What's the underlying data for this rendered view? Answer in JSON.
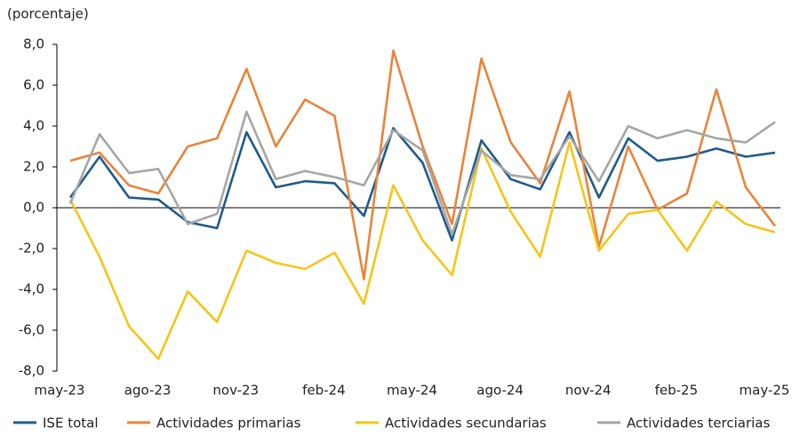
{
  "chart_data": {
    "type": "line",
    "subtitle": "(porcentaje)",
    "categories": [
      "may-23",
      null,
      null,
      "ago-23",
      null,
      null,
      "nov-23",
      null,
      null,
      "feb-24",
      null,
      null,
      "may-24",
      null,
      null,
      "ago-24",
      null,
      null,
      "nov-24",
      null,
      null,
      "feb-25",
      null,
      null,
      "may-25"
    ],
    "series": [
      {
        "name": "ISE total",
        "color": "#1f5b8a",
        "values": [
          0.5,
          2.5,
          0.5,
          0.4,
          -0.7,
          -1.0,
          3.7,
          1.0,
          1.3,
          1.2,
          -0.4,
          3.9,
          2.2,
          -1.6,
          3.3,
          1.4,
          0.9,
          3.7,
          0.5,
          3.4,
          2.3,
          2.5,
          2.9,
          2.5,
          2.7
        ]
      },
      {
        "name": "Actividades primarias",
        "color": "#e8843a",
        "values": [
          2.3,
          2.7,
          1.1,
          0.7,
          3.0,
          3.4,
          6.8,
          3.0,
          5.3,
          4.5,
          -3.5,
          7.7,
          3.0,
          -0.8,
          7.3,
          3.2,
          1.2,
          5.7,
          -1.9,
          3.0,
          -0.1,
          0.7,
          5.8,
          1.0,
          -0.9
        ]
      },
      {
        "name": "Actividades secundarias",
        "color": "#f5c518",
        "values": [
          0.4,
          -2.4,
          -5.8,
          -7.4,
          -4.1,
          -5.6,
          -2.1,
          -2.7,
          -3.0,
          -2.2,
          -4.7,
          1.1,
          -1.6,
          -3.3,
          2.9,
          -0.2,
          -2.4,
          3.2,
          -2.1,
          -0.3,
          -0.1,
          -2.1,
          0.3,
          -0.8,
          -1.2
        ]
      },
      {
        "name": "Actividades terciarias",
        "color": "#a6a6a6",
        "values": [
          0.2,
          3.6,
          1.7,
          1.9,
          -0.8,
          -0.3,
          4.7,
          1.4,
          1.8,
          1.5,
          1.1,
          3.8,
          2.8,
          -1.3,
          2.8,
          1.6,
          1.4,
          3.5,
          1.3,
          4.0,
          3.4,
          3.8,
          3.4,
          3.2,
          4.2
        ]
      }
    ],
    "ylim": [
      -8,
      8
    ],
    "yticks": [
      {
        "value": -8,
        "label": "-8,0"
      },
      {
        "value": -6,
        "label": "-6,0"
      },
      {
        "value": -4,
        "label": "-4,0"
      },
      {
        "value": -2,
        "label": "-2,0"
      },
      {
        "value": 0,
        "label": "0,0"
      },
      {
        "value": 2,
        "label": "2,0"
      },
      {
        "value": 4,
        "label": "4,0"
      },
      {
        "value": 6,
        "label": "6,0"
      },
      {
        "value": 8,
        "label": "8,0"
      }
    ],
    "legend": "bottom"
  }
}
